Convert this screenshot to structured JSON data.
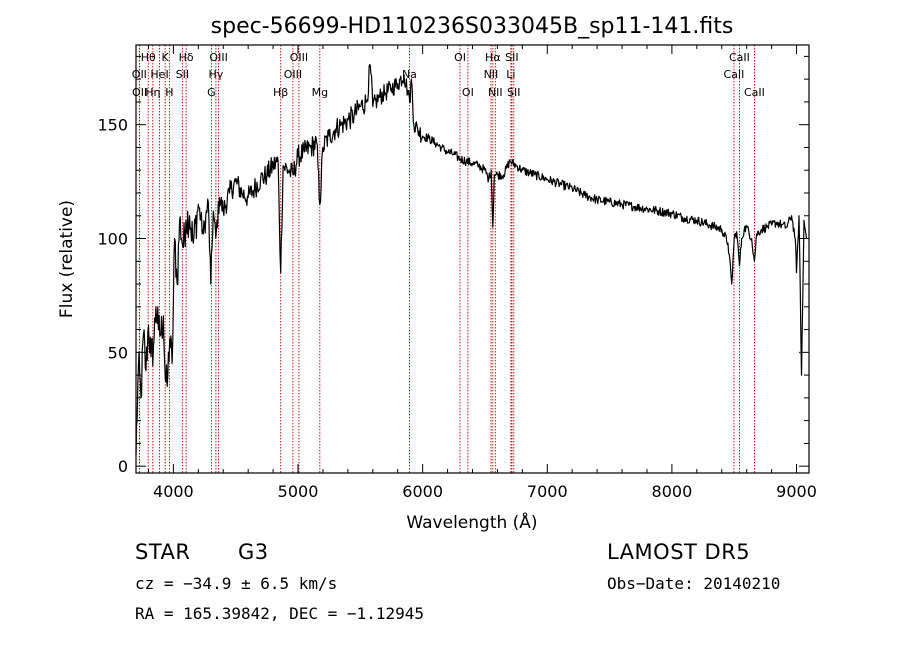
{
  "chart_data": {
    "type": "line",
    "title": "spec-56699-HD110236S033045B_sp11-141.fits",
    "xlabel": "Wavelength (Å)",
    "ylabel": "Flux (relative)",
    "xlim": [
      3700,
      9100
    ],
    "ylim": [
      -3,
      185
    ],
    "x_ticks": [
      4000,
      5000,
      6000,
      7000,
      8000,
      9000
    ],
    "y_ticks": [
      0,
      50,
      100,
      150
    ],
    "grid": false,
    "legend": "none",
    "series_color": "#000000",
    "line_color": "#cc0000",
    "spectrum": {
      "x": [
        3700,
        3720,
        3740,
        3760,
        3780,
        3800,
        3820,
        3840,
        3860,
        3880,
        3900,
        3920,
        3935,
        3950,
        3970,
        3990,
        4010,
        4030,
        4050,
        4080,
        4100,
        4130,
        4160,
        4200,
        4240,
        4280,
        4300,
        4320,
        4340,
        4370,
        4400,
        4450,
        4500,
        4550,
        4600,
        4650,
        4700,
        4750,
        4800,
        4840,
        4861,
        4880,
        4920,
        4960,
        5000,
        5050,
        5100,
        5150,
        5175,
        5200,
        5250,
        5300,
        5350,
        5400,
        5450,
        5500,
        5550,
        5580,
        5600,
        5650,
        5700,
        5750,
        5800,
        5850,
        5880,
        5895,
        5910,
        5930,
        5960,
        6000,
        6050,
        6100,
        6150,
        6200,
        6250,
        6300,
        6350,
        6400,
        6450,
        6500,
        6530,
        6550,
        6563,
        6575,
        6600,
        6650,
        6700,
        6750,
        6800,
        6900,
        7000,
        7100,
        7200,
        7300,
        7400,
        7500,
        7600,
        7700,
        7800,
        7900,
        8000,
        8100,
        8200,
        8300,
        8400,
        8450,
        8480,
        8500,
        8520,
        8542,
        8560,
        8580,
        8600,
        8640,
        8662,
        8680,
        8720,
        8760,
        8800,
        8840,
        8880,
        8920,
        8960,
        8990,
        9000,
        9020,
        9040,
        9060,
        9080
      ],
      "y": [
        5,
        45,
        30,
        58,
        42,
        62,
        48,
        52,
        70,
        60,
        58,
        66,
        38,
        35,
        56,
        45,
        100,
        80,
        108,
        96,
        108,
        110,
        98,
        115,
        102,
        116,
        80,
        112,
        100,
        118,
        112,
        120,
        125,
        120,
        118,
        122,
        126,
        128,
        132,
        134,
        85,
        132,
        130,
        128,
        136,
        138,
        140,
        142,
        115,
        140,
        145,
        148,
        150,
        152,
        154,
        158,
        160,
        176,
        158,
        162,
        164,
        166,
        168,
        172,
        165,
        160,
        170,
        150,
        148,
        145,
        144,
        142,
        140,
        138,
        137,
        135,
        134,
        133,
        132,
        130,
        126,
        130,
        105,
        128,
        128,
        128,
        134,
        132,
        130,
        128,
        126,
        124,
        122,
        119,
        117,
        116,
        115,
        114,
        113,
        112,
        111,
        109,
        108,
        106,
        104,
        98,
        80,
        100,
        103,
        88,
        100,
        104,
        105,
        100,
        90,
        102,
        104,
        105,
        106,
        107,
        106,
        105,
        110,
        100,
        85,
        110,
        40,
        108,
        100
      ]
    },
    "lines": [
      {
        "name": "Hθ",
        "x": 3798,
        "row": 1
      },
      {
        "name": "OII",
        "x": 3727,
        "row": 2
      },
      {
        "name": "OII",
        "x": 3729,
        "row": 3
      },
      {
        "name": "Hη",
        "x": 3835,
        "row": 3
      },
      {
        "name": "K",
        "x": 3934,
        "row": 1
      },
      {
        "name": "HeI",
        "x": 3889,
        "row": 2
      },
      {
        "name": "H",
        "x": 3968,
        "row": 3
      },
      {
        "name": "Hδ",
        "x": 4102,
        "row": 1
      },
      {
        "name": "SII",
        "x": 4072,
        "row": 2
      },
      {
        "name": "OIII",
        "x": 4363,
        "row": 1
      },
      {
        "name": "Hγ",
        "x": 4341,
        "row": 2
      },
      {
        "name": "G",
        "x": 4305,
        "row": 3
      },
      {
        "name": "OIII",
        "x": 5007,
        "row": 1
      },
      {
        "name": "OIII",
        "x": 4959,
        "row": 2
      },
      {
        "name": "Hβ",
        "x": 4861,
        "row": 3
      },
      {
        "name": "Mg",
        "x": 5175,
        "row": 3
      },
      {
        "name": "Na",
        "x": 5894,
        "row": 2
      },
      {
        "name": "OI",
        "x": 6300,
        "row": 1
      },
      {
        "name": "OI",
        "x": 6363,
        "row": 3
      },
      {
        "name": "Hα",
        "x": 6563,
        "row": 1
      },
      {
        "name": "NII",
        "x": 6548,
        "row": 2
      },
      {
        "name": "NII",
        "x": 6583,
        "row": 3
      },
      {
        "name": "SII",
        "x": 6716,
        "row": 1
      },
      {
        "name": "Li",
        "x": 6708,
        "row": 2
      },
      {
        "name": "SII",
        "x": 6731,
        "row": 3
      },
      {
        "name": "CaII",
        "x": 8542,
        "row": 1
      },
      {
        "name": "CaII",
        "x": 8498,
        "row": 2
      },
      {
        "name": "CaII",
        "x": 8662,
        "row": 3
      }
    ]
  },
  "info": {
    "class": "STAR",
    "subclass": "G3",
    "survey": "LAMOST DR5",
    "cz": "cz = −34.9 ± 6.5 km/s",
    "obs_date": "Obs−Date: 20140210",
    "coords": "RA = 165.39842, DEC =  −1.12945"
  }
}
